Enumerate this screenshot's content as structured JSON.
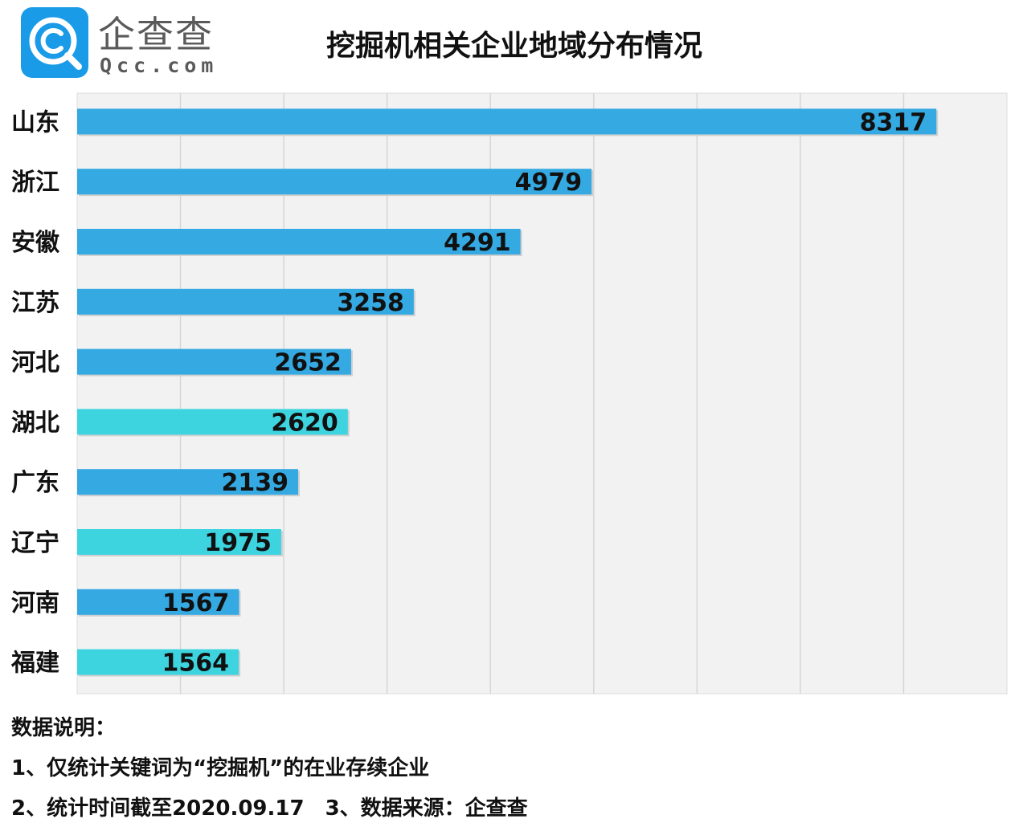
{
  "logo": {
    "cn": "企查查",
    "en": "Qcc.com",
    "mark_icon": "qcc-magnifier-icon",
    "brand_color": "#1a9be8"
  },
  "chart_data": {
    "type": "bar",
    "orientation": "horizontal",
    "title": "挖掘机相关企业地域分布情况",
    "categories": [
      "山东",
      "浙江",
      "安徽",
      "江苏",
      "河北",
      "湖北",
      "广东",
      "辽宁",
      "河南",
      "福建"
    ],
    "values": [
      8317,
      4979,
      4291,
      3258,
      2652,
      2620,
      2139,
      1975,
      1567,
      1564
    ],
    "bar_colors": [
      "#35a9e2",
      "#35a9e2",
      "#35a9e2",
      "#35a9e2",
      "#35a9e2",
      "#3dd4e0",
      "#35a9e2",
      "#3dd4e0",
      "#35a9e2",
      "#3dd4e0"
    ],
    "xlim": [
      0,
      9000
    ],
    "grid": true,
    "xlabel": "",
    "ylabel": ""
  },
  "notes": {
    "heading": "数据说明：",
    "line1": "1、仅统计关键词为“挖掘机”的在业存续企业",
    "line2a": "2、统计时间截至2020.09.17",
    "line2b": "3、数据来源：企查查"
  }
}
